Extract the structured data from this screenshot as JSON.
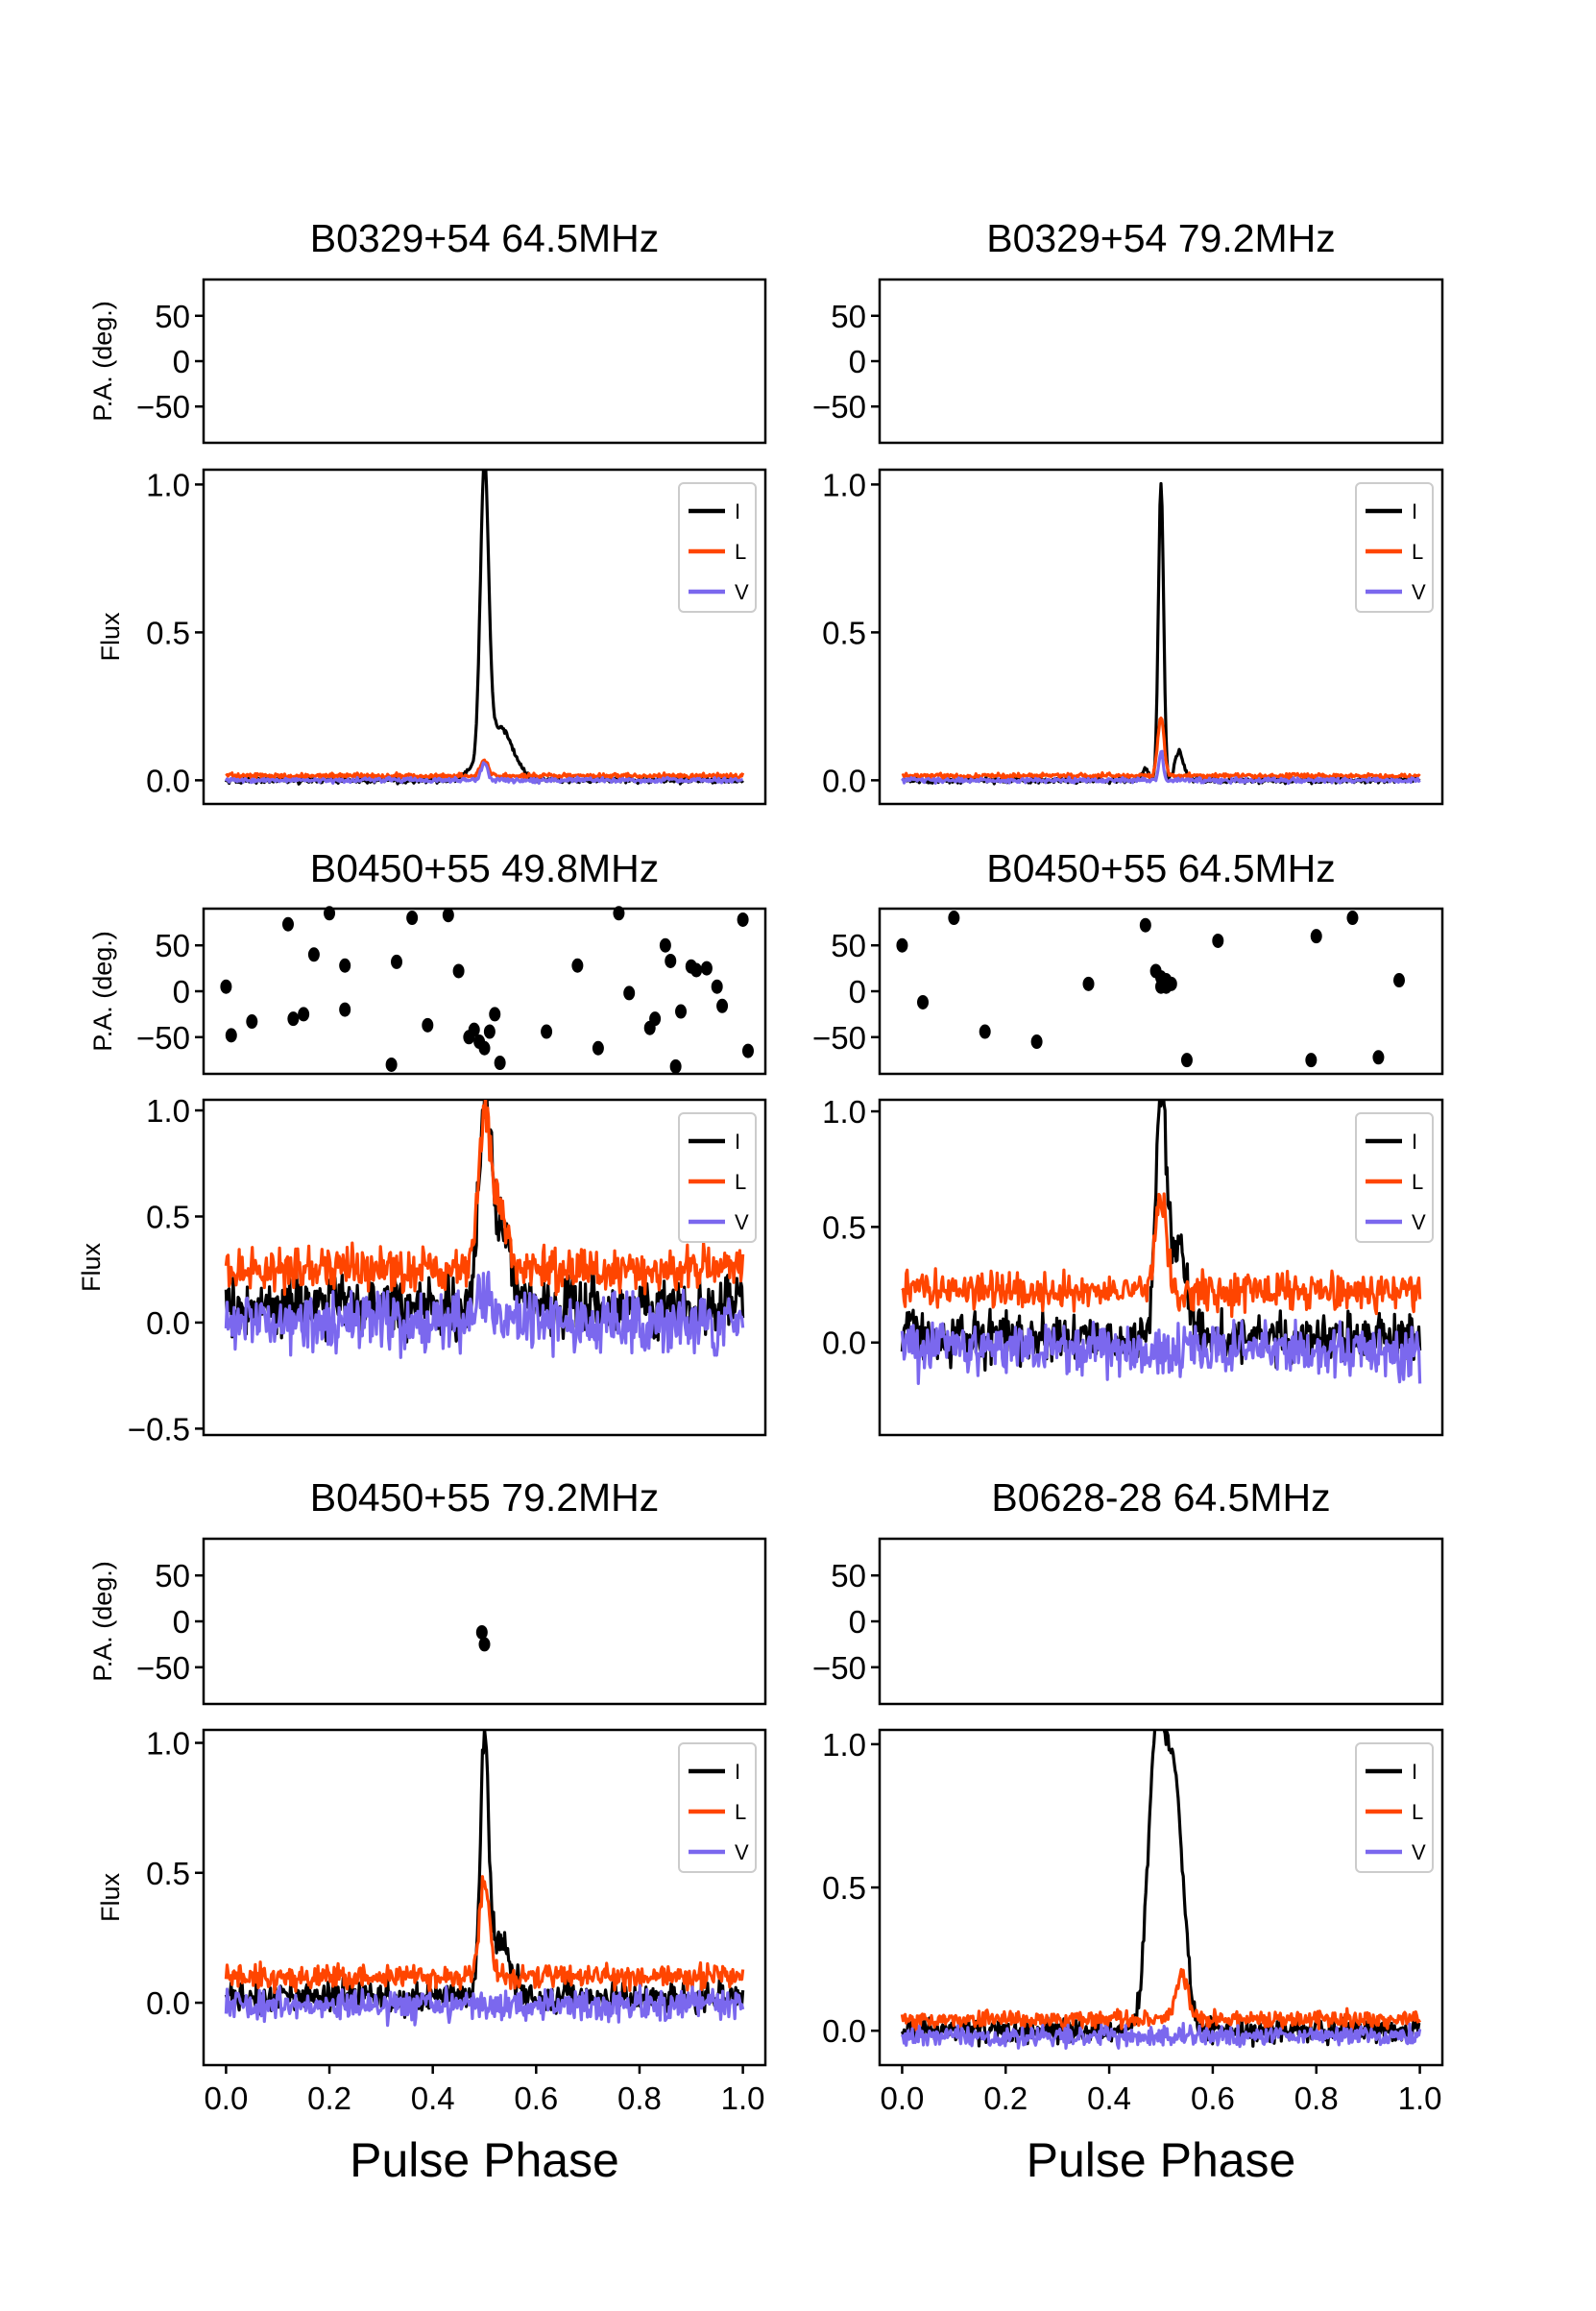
{
  "figure": {
    "xlabel": "Pulse Phase",
    "pa_ylabel": "P.A. (deg.)",
    "flux_ylabel": "Flux",
    "x_ticks": [
      "0.0",
      "0.2",
      "0.4",
      "0.6",
      "0.8",
      "1.0"
    ],
    "colors": {
      "I": "#000000",
      "L": "#ff4500",
      "V": "#7b68ee"
    }
  },
  "chart_data": [
    {
      "type": "line",
      "title": "B0329+54 64.5MHz",
      "pa": {
        "ylim": [
          -90,
          90
        ],
        "ticks": [
          "50",
          "0",
          "−50"
        ],
        "points": []
      },
      "flux": {
        "ylim": [
          -0.08,
          1.05
        ],
        "ticks": [
          {
            "v": 1.0,
            "label": "1.0"
          },
          {
            "v": 0.5,
            "label": "0.5"
          },
          {
            "v": 0.0,
            "label": "0.0"
          }
        ],
        "legend": [
          "I",
          "L",
          "V"
        ],
        "I": {
          "noise": 0.008,
          "base": 0.0,
          "comps": [
            [
              0.5,
              1.0,
              0.008
            ],
            [
              0.53,
              0.18,
              0.025
            ],
            [
              0.47,
              0.03,
              0.01
            ]
          ]
        },
        "L": {
          "noise": 0.007,
          "base": 0.015,
          "comps": [
            [
              0.5,
              0.05,
              0.008
            ]
          ]
        },
        "V": {
          "noise": 0.007,
          "base": 0.0,
          "comps": [
            [
              0.5,
              0.06,
              0.006
            ]
          ]
        },
        "seed": 11
      }
    },
    {
      "type": "line",
      "title": "B0329+54 79.2MHz",
      "pa": {
        "ylim": [
          -90,
          90
        ],
        "ticks": [
          "50",
          "0",
          "−50"
        ],
        "points": []
      },
      "flux": {
        "ylim": [
          -0.08,
          1.05
        ],
        "ticks": [
          {
            "v": 1.0,
            "label": "1.0"
          },
          {
            "v": 0.5,
            "label": "0.5"
          },
          {
            "v": 0.0,
            "label": "0.0"
          }
        ],
        "legend": [
          "I",
          "L",
          "V"
        ],
        "I": {
          "noise": 0.008,
          "base": 0.0,
          "comps": [
            [
              0.5,
              1.0,
              0.005
            ],
            [
              0.535,
              0.1,
              0.008
            ],
            [
              0.47,
              0.04,
              0.006
            ]
          ]
        },
        "L": {
          "noise": 0.007,
          "base": 0.015,
          "comps": [
            [
              0.5,
              0.2,
              0.006
            ]
          ]
        },
        "V": {
          "noise": 0.007,
          "base": 0.0,
          "comps": [
            [
              0.5,
              0.1,
              0.004
            ]
          ]
        },
        "seed": 23
      }
    },
    {
      "type": "line",
      "title": "B0450+55 49.8MHz",
      "pa": {
        "ylim": [
          -90,
          90
        ],
        "ticks": [
          "50",
          "0",
          "−50"
        ],
        "points": [
          [
            0.0,
            5
          ],
          [
            0.01,
            -48
          ],
          [
            0.05,
            -33
          ],
          [
            0.12,
            73
          ],
          [
            0.13,
            -30
          ],
          [
            0.15,
            -25
          ],
          [
            0.17,
            40
          ],
          [
            0.2,
            85
          ],
          [
            0.23,
            28
          ],
          [
            0.23,
            -20
          ],
          [
            0.33,
            32
          ],
          [
            0.32,
            -80
          ],
          [
            0.36,
            80
          ],
          [
            0.39,
            -37
          ],
          [
            0.43,
            83
          ],
          [
            0.45,
            22
          ],
          [
            0.47,
            -50
          ],
          [
            0.48,
            -42
          ],
          [
            0.49,
            -55
          ],
          [
            0.5,
            -62
          ],
          [
            0.51,
            -44
          ],
          [
            0.52,
            -25
          ],
          [
            0.53,
            -78
          ],
          [
            0.62,
            -44
          ],
          [
            0.68,
            28
          ],
          [
            0.72,
            -62
          ],
          [
            0.76,
            85
          ],
          [
            0.78,
            -2
          ],
          [
            0.82,
            -40
          ],
          [
            0.83,
            -30
          ],
          [
            0.85,
            50
          ],
          [
            0.86,
            33
          ],
          [
            0.87,
            -82
          ],
          [
            0.88,
            -22
          ],
          [
            0.9,
            27
          ],
          [
            0.91,
            23
          ],
          [
            0.93,
            25
          ],
          [
            0.95,
            5
          ],
          [
            0.96,
            -16
          ],
          [
            1.0,
            78
          ],
          [
            1.01,
            -65
          ]
        ]
      },
      "flux": {
        "ylim": [
          -0.53,
          1.05
        ],
        "ticks": [
          {
            "v": 1.0,
            "label": "1.0"
          },
          {
            "v": 0.5,
            "label": "0.5"
          },
          {
            "v": 0.0,
            "label": "0.0"
          },
          {
            "v": -0.5,
            "label": "−0.5"
          }
        ],
        "legend": [
          "I",
          "L",
          "V"
        ],
        "I": {
          "noise": 0.12,
          "base": 0.08,
          "comps": [
            [
              0.5,
              0.82,
              0.012
            ],
            [
              0.53,
              0.35,
              0.02
            ]
          ]
        },
        "L": {
          "noise": 0.09,
          "base": 0.25,
          "comps": [
            [
              0.5,
              0.68,
              0.012
            ],
            [
              0.53,
              0.25,
              0.015
            ]
          ]
        },
        "V": {
          "noise": 0.12,
          "base": 0.0,
          "comps": [
            [
              0.5,
              0.15,
              0.015
            ]
          ]
        },
        "seed": 37
      }
    },
    {
      "type": "line",
      "title": "B0450+55 64.5MHz",
      "pa": {
        "ylim": [
          -90,
          90
        ],
        "ticks": [
          "50",
          "0",
          "−50"
        ],
        "points": [
          [
            0.0,
            50
          ],
          [
            0.04,
            -12
          ],
          [
            0.1,
            80
          ],
          [
            0.16,
            -44
          ],
          [
            0.26,
            -55
          ],
          [
            0.36,
            8
          ],
          [
            0.47,
            72
          ],
          [
            0.49,
            22
          ],
          [
            0.5,
            15
          ],
          [
            0.51,
            12
          ],
          [
            0.52,
            8
          ],
          [
            0.51,
            5
          ],
          [
            0.5,
            5
          ],
          [
            0.55,
            -75
          ],
          [
            0.61,
            55
          ],
          [
            0.79,
            -75
          ],
          [
            0.8,
            60
          ],
          [
            0.87,
            80
          ],
          [
            0.92,
            -72
          ],
          [
            0.96,
            12
          ]
        ]
      },
      "flux": {
        "ylim": [
          -0.4,
          1.05
        ],
        "ticks": [
          {
            "v": 1.0,
            "label": "1.0"
          },
          {
            "v": 0.5,
            "label": "0.5"
          },
          {
            "v": 0.0,
            "label": "0.0"
          }
        ],
        "legend": [
          "I",
          "L",
          "V"
        ],
        "I": {
          "noise": 0.09,
          "base": 0.02,
          "comps": [
            [
              0.5,
              0.95,
              0.01
            ],
            [
              0.53,
              0.4,
              0.02
            ]
          ]
        },
        "L": {
          "noise": 0.07,
          "base": 0.22,
          "comps": [
            [
              0.5,
              0.42,
              0.01
            ]
          ]
        },
        "V": {
          "noise": 0.1,
          "base": -0.03,
          "comps": []
        },
        "seed": 53
      }
    },
    {
      "type": "line",
      "title": "B0450+55 79.2MHz",
      "pa": {
        "ylim": [
          -90,
          90
        ],
        "ticks": [
          "50",
          "0",
          "−50"
        ],
        "points": [
          [
            0.495,
            -12
          ],
          [
            0.5,
            -25
          ]
        ]
      },
      "flux": {
        "ylim": [
          -0.24,
          1.05
        ],
        "ticks": [
          {
            "v": 1.0,
            "label": "1.0"
          },
          {
            "v": 0.5,
            "label": "0.5"
          },
          {
            "v": 0.0,
            "label": "0.0"
          }
        ],
        "legend": [
          "I",
          "L",
          "V"
        ],
        "I": {
          "noise": 0.05,
          "base": 0.02,
          "comps": [
            [
              0.5,
              0.95,
              0.008
            ],
            [
              0.53,
              0.22,
              0.02
            ]
          ]
        },
        "L": {
          "noise": 0.04,
          "base": 0.1,
          "comps": [
            [
              0.5,
              0.35,
              0.01
            ]
          ]
        },
        "V": {
          "noise": 0.05,
          "base": -0.01,
          "comps": []
        },
        "seed": 71
      }
    },
    {
      "type": "line",
      "title": "B0628-28 64.5MHz",
      "pa": {
        "ylim": [
          -90,
          90
        ],
        "ticks": [
          "50",
          "0",
          "−50"
        ],
        "points": []
      },
      "flux": {
        "ylim": [
          -0.12,
          1.05
        ],
        "ticks": [
          {
            "v": 1.0,
            "label": "1.0"
          },
          {
            "v": 0.5,
            "label": "0.5"
          },
          {
            "v": 0.0,
            "label": "0.0"
          }
        ],
        "legend": [
          "I",
          "L",
          "V"
        ],
        "I": {
          "noise": 0.035,
          "base": 0.0,
          "comps": [
            [
              0.49,
              0.95,
              0.016
            ],
            [
              0.525,
              0.85,
              0.018
            ]
          ]
        },
        "L": {
          "noise": 0.025,
          "base": 0.04,
          "comps": [
            [
              0.54,
              0.15,
              0.012
            ]
          ]
        },
        "V": {
          "noise": 0.03,
          "base": -0.02,
          "comps": []
        },
        "seed": 89
      }
    }
  ]
}
